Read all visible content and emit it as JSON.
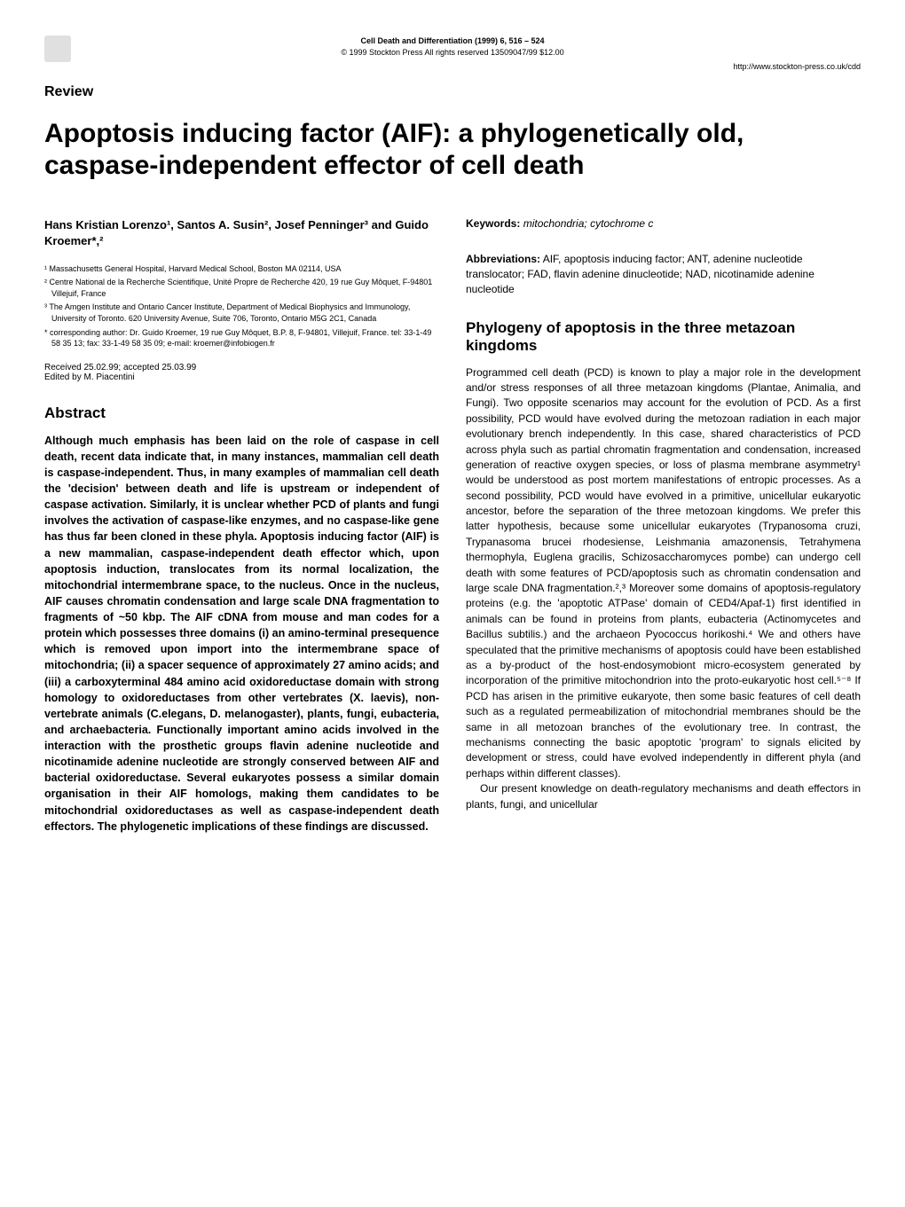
{
  "header": {
    "journal_title": "Cell Death and Differentiation (1999) 6, 516 – 524",
    "copyright": "© 1999 Stockton Press   All rights reserved 13509047/99 $12.00",
    "url": "http://www.stockton-press.co.uk/cdd"
  },
  "review_label": "Review",
  "article_title": "Apoptosis inducing factor (AIF): a phylogenetically old, caspase-independent effector of cell death",
  "authors": "Hans Kristian Lorenzo¹, Santos A. Susin², Josef Penninger³ and Guido Kroemer*,²",
  "affiliations": [
    "¹ Massachusetts General Hospital, Harvard Medical School, Boston MA 02114, USA",
    "² Centre National de la Recherche Scientifique, Unité Propre de Recherche 420, 19 rue Guy Môquet, F-94801 Villejuif, France",
    "³ The Amgen Institute and Ontario Cancer Institute, Department of Medical Biophysics and Immunology, University of Toronto. 620 University Avenue, Suite 706, Toronto, Ontario M5G 2C1, Canada",
    "* corresponding author: Dr. Guido Kroemer, 19 rue Guy Môquet, B.P. 8, F-94801, Villejuif, France. tel: 33-1-49 58 35 13; fax: 33-1-49 58 35 09; e-mail: kroemer@infobiogen.fr"
  ],
  "received": "Received 25.02.99; accepted 25.03.99\nEdited by M. Piacentini",
  "abstract_heading": "Abstract",
  "abstract_text": "Although much emphasis has been laid on the role of caspase in cell death, recent data indicate that, in many instances, mammalian cell death is caspase-independent. Thus, in many examples of mammalian cell death the 'decision' between death and life is upstream or independent of caspase activation. Similarly, it is unclear whether PCD of plants and fungi involves the activation of caspase-like enzymes, and no caspase-like gene has thus far been cloned in these phyla. Apoptosis inducing factor (AIF) is a new mammalian, caspase-independent death effector which, upon apoptosis induction, translocates from its normal localization, the mitochondrial intermembrane space, to the nucleus. Once in the nucleus, AIF causes chromatin condensation and large scale DNA fragmentation to fragments of ~50 kbp. The AIF cDNA from mouse and man codes for a protein which possesses three domains (i) an amino-terminal presequence which is removed upon import into the intermembrane space of mitochondria; (ii) a spacer sequence of approximately 27 amino acids; and (iii) a carboxyterminal 484 amino acid oxidoreductase domain with strong homology to oxidoreductases from other vertebrates (X. laevis), non-vertebrate animals (C.elegans, D. melanogaster), plants, fungi, eubacteria, and archaebacteria. Functionally important amino acids involved in the interaction with the prosthetic groups flavin adenine nucleotide and nicotinamide adenine nucleotide are strongly conserved between AIF and bacterial oxidoreductase. Several eukaryotes possess a similar domain organisation in their AIF homologs, making them candidates to be mitochondrial oxidoreductases as well as caspase-independent death effectors. The phylogenetic implications of these findings are discussed.",
  "keywords_label": "Keywords:",
  "keywords_text": " mitochondria; cytochrome c",
  "abbreviations_label": "Abbreviations:",
  "abbreviations_text": " AIF, apoptosis inducing factor; ANT, adenine nucleotide translocator; FAD, flavin adenine dinucleotide; NAD, nicotinamide adenine nucleotide",
  "section1_heading": "Phylogeny of apoptosis in the three metazoan kingdoms",
  "section1_p1": "Programmed cell death (PCD) is known to play a major role in the development and/or stress responses of all three metazoan kingdoms (Plantae, Animalia, and Fungi). Two opposite scenarios may account for the evolution of PCD. As a first possibility, PCD would have evolved during the metozoan radiation in each major evolutionary brench independently. In this case, shared characteristics of PCD across phyla such as partial chromatin fragmentation and condensation, increased generation of reactive oxygen species, or loss of plasma membrane asymmetry¹ would be understood as post mortem manifestations of entropic processes. As a second possibility, PCD would have evolved in a primitive, unicellular eukaryotic ancestor, before the separation of the three metozoan kingdoms. We prefer this latter hypothesis, because some unicellular eukaryotes (Trypanosoma cruzi, Trypanasoma brucei rhodesiense, Leishmania amazonensis, Tetrahymena thermophyla, Euglena gracilis, Schizosaccharomyces pombe) can undergo cell death with some features of PCD/apoptosis such as chromatin condensation and large scale DNA fragmentation.²,³ Moreover some domains of apoptosis-regulatory proteins (e.g. the 'apoptotic ATPase' domain of CED4/Apaf-1) first identified in animals can be found in proteins from plants, eubacteria (Actinomycetes and Bacillus subtilis.) and the archaeon Pyococcus horikoshi.⁴ We and others have speculated that the primitive mechanisms of apoptosis could have been established as a by-product of the host-endosymobiont micro-ecosystem generated by incorporation of the primitive mitochondrion into the proto-eukaryotic host cell.⁵⁻⁸ If PCD has arisen in the primitive eukaryote, then some basic features of cell death such as a regulated permeabilization of mitochondrial membranes should be the same in all metozoan branches of the evolutionary tree. In contrast, the mechanisms connecting the basic apoptotic 'program' to signals elicited by development or stress, could have evolved independently in different phyla (and perhaps within different classes).",
  "section1_p2": "Our present knowledge on death-regulatory mechanisms and death effectors in plants, fungi, and unicellular"
}
